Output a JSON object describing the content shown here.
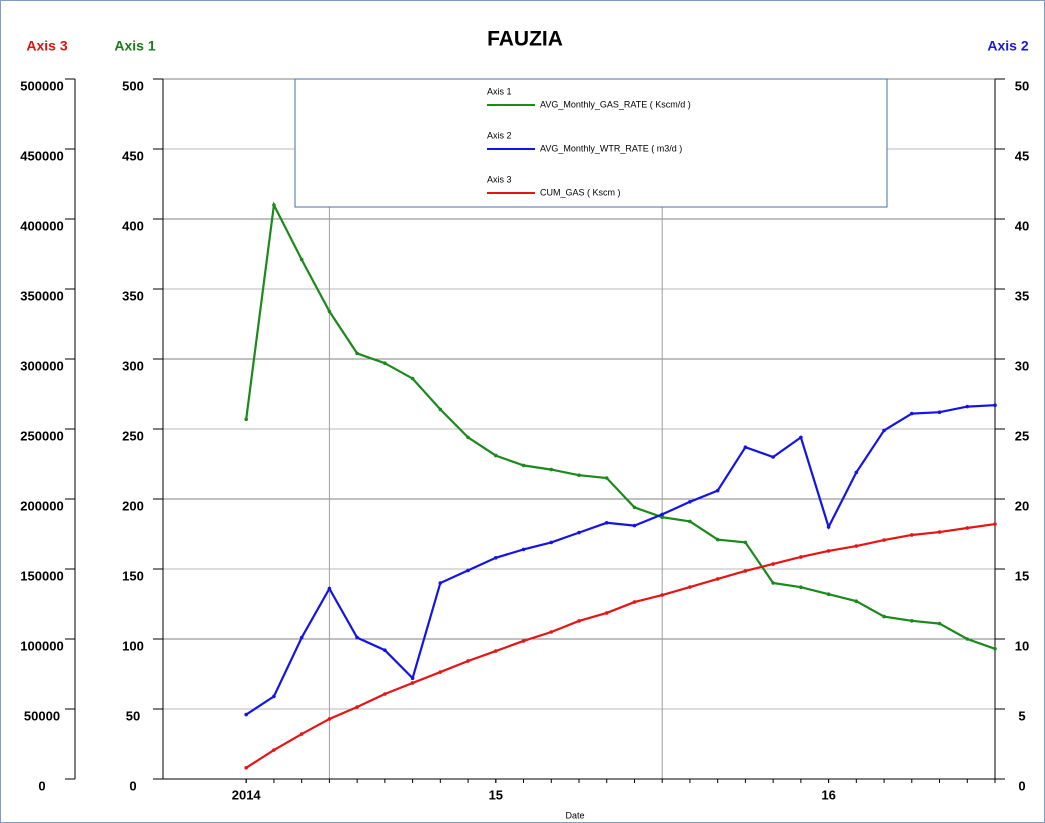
{
  "chart_data": {
    "type": "line",
    "title": "FAUZIA",
    "x_label": "Date",
    "x": [
      2014.75,
      2014.8333,
      2014.9167,
      2015,
      2015.0833,
      2015.1667,
      2015.25,
      2015.3333,
      2015.4167,
      2015.5,
      2015.5833,
      2015.6667,
      2015.75,
      2015.8333,
      2015.9167,
      2016,
      2016.0833,
      2016.1667,
      2016.25,
      2016.3333,
      2016.4167,
      2016.5,
      2016.5833,
      2016.6667,
      2016.75,
      2016.8333,
      2016.9167,
      2017
    ],
    "xlim": [
      2014.5,
      2017
    ],
    "xticks": [
      {
        "value": 2014.75,
        "label": "2014"
      },
      {
        "value": 2015.5,
        "label": "15"
      },
      {
        "value": 2016.5,
        "label": "16"
      }
    ],
    "xgrid": [
      2015,
      2016
    ],
    "grid": true,
    "y_label": "Axis 1",
    "y_color": "#1a7a1a",
    "ylim": [
      0,
      500
    ],
    "yticks": [
      0,
      50,
      100,
      150,
      200,
      250,
      300,
      350,
      400,
      450,
      500
    ],
    "y2_label": "Axis 2",
    "y2_color": "#1a1ad6",
    "y2lim": [
      0,
      50
    ],
    "y2ticks": [
      0,
      5,
      10,
      15,
      20,
      25,
      30,
      35,
      40,
      45,
      50
    ],
    "y3_label": "Axis 3",
    "y3_color": "#e01010",
    "y3lim": [
      0,
      500000
    ],
    "y3ticks": [
      0,
      50000,
      100000,
      150000,
      200000,
      250000,
      300000,
      350000,
      400000,
      450000,
      500000
    ],
    "series": [
      {
        "name": "AVG_Monthly_GAS_RATE ( Kscm/d )",
        "color": "#1a8a1a",
        "axis": "y",
        "values": [
          257,
          410,
          371,
          334,
          304,
          297,
          286,
          264,
          244,
          231,
          224,
          221,
          217,
          215,
          194,
          187,
          184,
          171,
          169,
          140,
          137,
          132,
          127,
          116,
          113,
          111,
          100,
          93
        ]
      },
      {
        "name": "AVG_Monthly_WTR_RATE ( m3/d )",
        "color": "#1414e6",
        "axis": "y2",
        "values": [
          4.6,
          5.9,
          10.1,
          13.6,
          10.1,
          9.2,
          7.2,
          14.0,
          14.9,
          15.8,
          16.4,
          16.9,
          17.6,
          18.3,
          18.1,
          18.9,
          19.8,
          20.6,
          23.7,
          23.0,
          24.4,
          18.0,
          21.9,
          24.9,
          26.1,
          26.2,
          26.6,
          26.7
        ]
      },
      {
        "name": "CUM_GAS ( Kscm )",
        "color": "#e61414",
        "axis": "y3",
        "values": [
          8000,
          20700,
          32100,
          42900,
          51400,
          60700,
          68600,
          76400,
          84300,
          91400,
          98600,
          105000,
          112900,
          118600,
          126400,
          131400,
          137100,
          142900,
          148600,
          153600,
          158600,
          162900,
          166400,
          170700,
          174300,
          176400,
          179300,
          182100
        ]
      }
    ]
  }
}
